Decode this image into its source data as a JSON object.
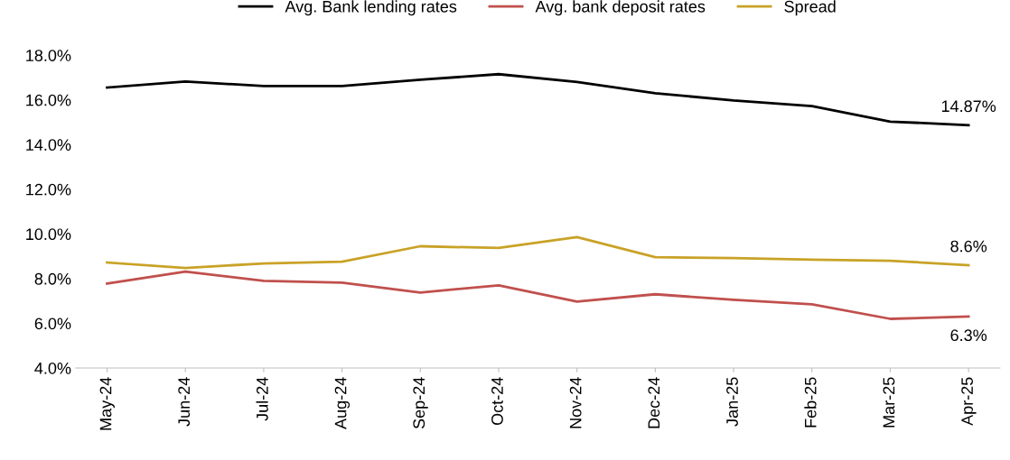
{
  "chart_data": {
    "type": "line",
    "categories": [
      "May-24",
      "Jun-24",
      "Jul-24",
      "Aug-24",
      "Sep-24",
      "Oct-24",
      "Nov-24",
      "Dec-24",
      "Jan-25",
      "Feb-25",
      "Mar-25",
      "Apr-25"
    ],
    "series": [
      {
        "name": "Avg. Bank lending rates",
        "color": "#000000",
        "values": [
          16.55,
          16.82,
          16.62,
          16.62,
          16.9,
          17.15,
          16.8,
          16.3,
          15.97,
          15.72,
          15.03,
          14.87
        ],
        "value_labels": [
          null,
          null,
          null,
          null,
          null,
          null,
          null,
          null,
          null,
          null,
          null,
          "14.87%"
        ]
      },
      {
        "name": "Avg. bank deposit rates",
        "color": "#c0504d",
        "values": [
          7.78,
          8.31,
          7.9,
          7.82,
          7.38,
          7.7,
          6.97,
          7.3,
          7.05,
          6.85,
          6.2,
          6.3
        ],
        "value_labels": [
          null,
          null,
          null,
          null,
          null,
          null,
          null,
          null,
          null,
          null,
          null,
          "6.3%"
        ]
      },
      {
        "name": "Spread",
        "color": "#c9a227",
        "values": [
          8.72,
          8.48,
          8.68,
          8.76,
          9.45,
          9.37,
          9.86,
          8.96,
          8.92,
          8.85,
          8.8,
          8.6
        ],
        "value_labels": [
          null,
          null,
          null,
          null,
          null,
          null,
          null,
          null,
          null,
          null,
          null,
          "8.6%"
        ]
      }
    ],
    "ylim": [
      4,
      18
    ],
    "yticks": [
      {
        "value": 4,
        "label": "4.0%"
      },
      {
        "value": 6,
        "label": "6.0%"
      },
      {
        "value": 8,
        "label": "8.0%"
      },
      {
        "value": 10,
        "label": "10.0%"
      },
      {
        "value": 12,
        "label": "12.0%"
      },
      {
        "value": 14,
        "label": "14.0%"
      },
      {
        "value": 16,
        "label": "16.0%"
      },
      {
        "value": 18,
        "label": "18.0%"
      }
    ],
    "legend": "top",
    "grid": false,
    "marker": "none",
    "line_style": "solid"
  }
}
